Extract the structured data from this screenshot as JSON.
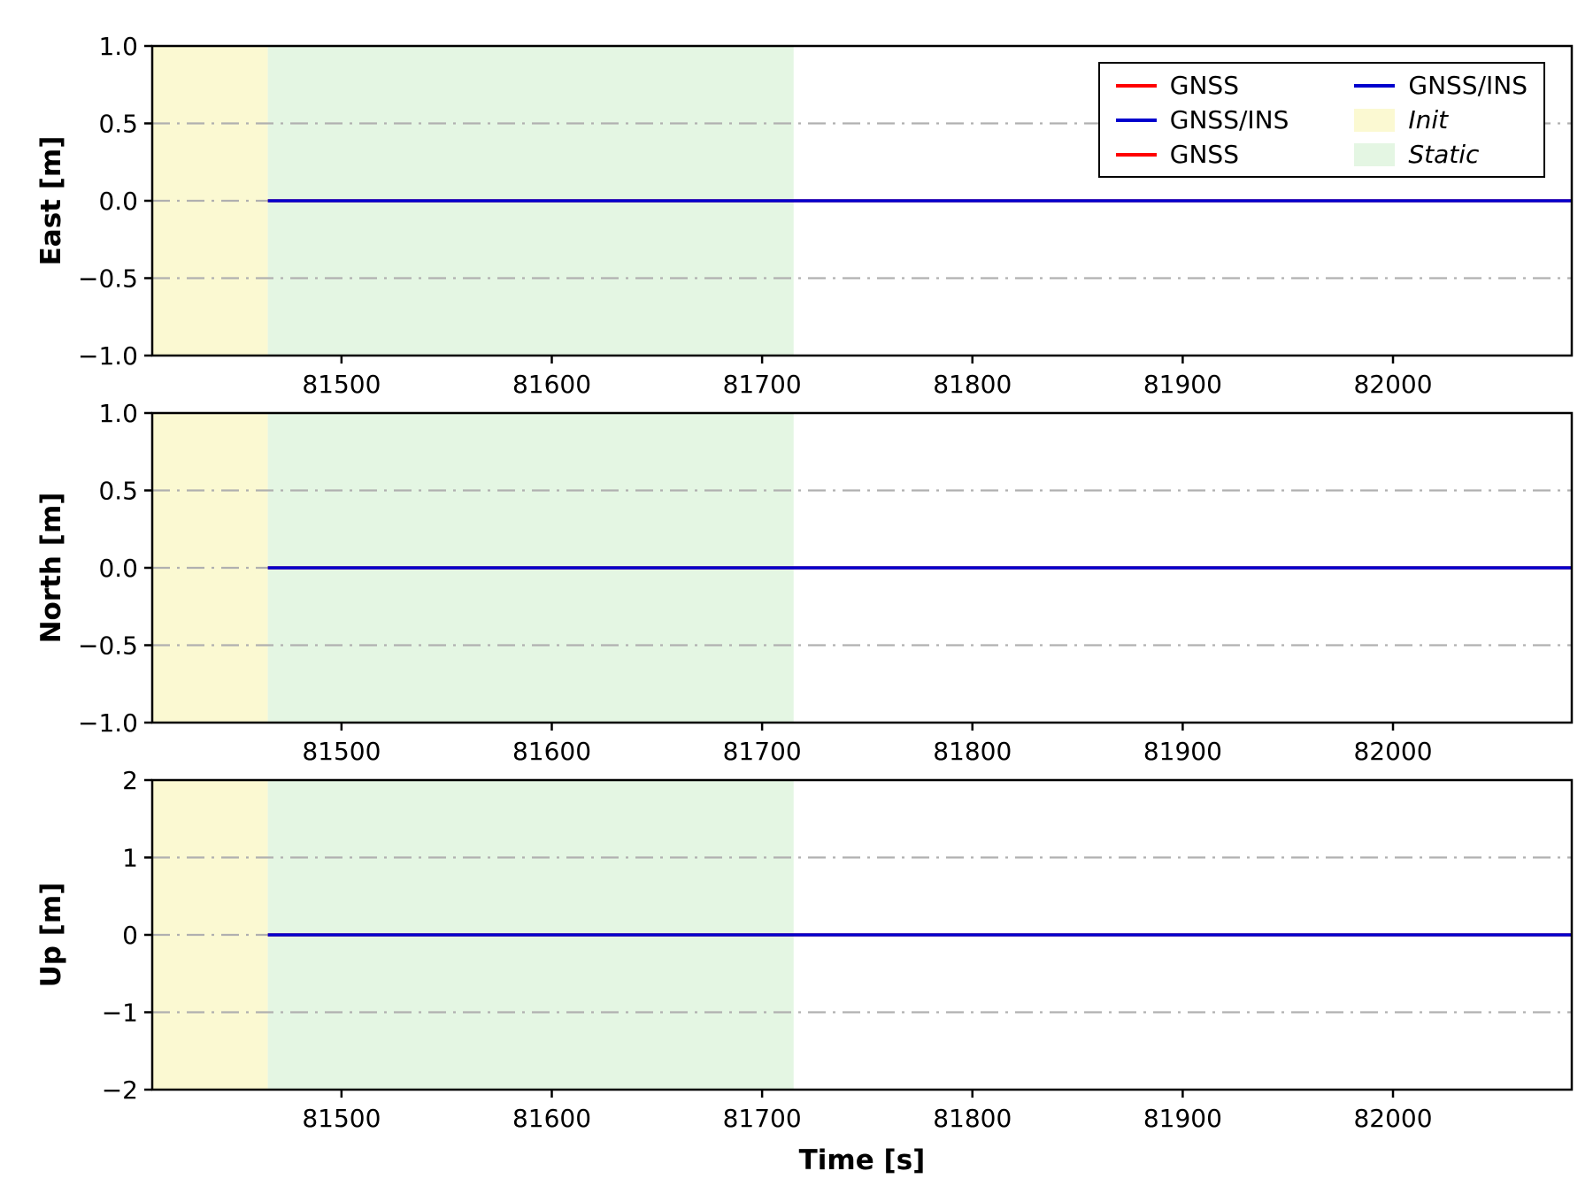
{
  "chart_data": {
    "type": "line",
    "title": "",
    "xlabel": "Time [s]",
    "xlim": [
      81410,
      82085
    ],
    "xticks": [
      81500,
      81600,
      81700,
      81800,
      81900,
      82000
    ],
    "xtick_labels": [
      "81500",
      "81600",
      "81700",
      "81800",
      "81900",
      "82000"
    ],
    "grid": "dash-dot gray horizontal lines at inner y ticks",
    "subplots": [
      {
        "id": "east",
        "ylabel": "East [m]",
        "ylim": [
          -1.0,
          1.0
        ],
        "yticks": [
          -1.0,
          -0.5,
          0.0,
          0.5,
          1.0
        ],
        "ytick_labels": [
          "−1.0",
          "−0.5",
          "0.0",
          "0.5",
          "1.0"
        ],
        "grid_lines": [
          -0.5,
          0.0,
          0.5
        ]
      },
      {
        "id": "north",
        "ylabel": "North [m]",
        "ylim": [
          -1.0,
          1.0
        ],
        "yticks": [
          -1.0,
          -0.5,
          0.0,
          0.5,
          1.0
        ],
        "ytick_labels": [
          "−1.0",
          "−0.5",
          "0.0",
          "0.5",
          "1.0"
        ],
        "grid_lines": [
          -0.5,
          0.0,
          0.5
        ]
      },
      {
        "id": "up",
        "ylabel": "Up [m]",
        "ylim": [
          -2,
          2
        ],
        "yticks": [
          -2,
          -1,
          0,
          1,
          2
        ],
        "ytick_labels": [
          "−2",
          "−1",
          "0",
          "1",
          "2"
        ],
        "grid_lines": [
          -1,
          0,
          1
        ]
      }
    ],
    "series": [
      {
        "name": "GNSS",
        "color": "#ff0000",
        "x": [
          81465,
          82085
        ],
        "y": [
          0,
          0
        ]
      },
      {
        "name": "GNSS/INS",
        "color": "#0000cd",
        "x": [
          81465,
          82085
        ],
        "y": [
          0,
          0
        ]
      }
    ],
    "regions": [
      {
        "label": "Init",
        "xstart": 81410,
        "xend": 81465,
        "color": "#FBF9D2"
      },
      {
        "label": "Static",
        "xstart": 81465,
        "xend": 81715,
        "color": "#E4F6E3"
      }
    ],
    "legend_position": "upper right of first subplot"
  },
  "legend": {
    "columns": 2,
    "entries": [
      {
        "label": "GNSS",
        "swatch": "line",
        "color": "#ff0000",
        "italic": false
      },
      {
        "label": "GNSS/INS",
        "swatch": "line",
        "color": "#0000cd",
        "italic": false
      },
      {
        "label": "GNSS",
        "swatch": "line",
        "color": "#ff0000",
        "italic": false
      },
      {
        "label": "GNSS/INS",
        "swatch": "line",
        "color": "#0000cd",
        "italic": false
      },
      {
        "label": "Init",
        "swatch": "patch",
        "color": "#FBF9D2",
        "italic": true
      },
      {
        "label": "Static",
        "swatch": "patch",
        "color": "#E4F6E3",
        "italic": true
      }
    ]
  },
  "style": {
    "background": "#ffffff",
    "grid_color": "#b0b0b0",
    "spine_color": "#000000",
    "tick_color": "#000000"
  }
}
